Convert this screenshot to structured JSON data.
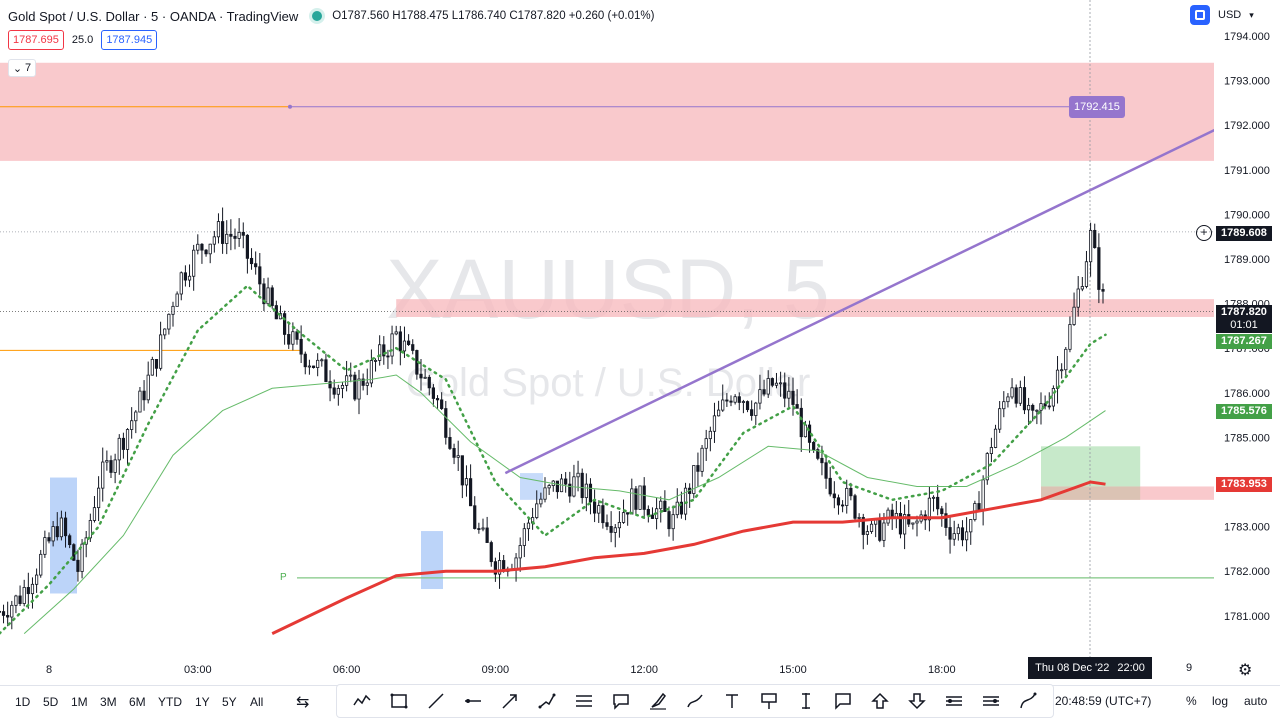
{
  "header": {
    "title": "Gold Spot / U.S. Dollar · 5 · OANDA · TradingView",
    "ohlc": "O1787.560 H1788.475 L1786.740 C1787.820 +0.260 (+0.01%)",
    "sell_price": "1787.695",
    "spread": "25.0",
    "buy_price": "1787.945",
    "indicator_count": "7",
    "currency": "USD"
  },
  "watermark": {
    "symbol": "XAUUSD, 5",
    "description": "Gold Spot / U.S. Dollar"
  },
  "colors": {
    "up": "#131722",
    "down": "#131722",
    "accent_blue": "#2962ff",
    "ma_red": "#e53935",
    "ma_green": "#66bb6a",
    "trendline": "#9575cd",
    "zone_red": "#f8bbbf"
  },
  "price_tags": {
    "trendline_end": "1792.415",
    "crosshair": "1789.608",
    "last_price": "1787.820",
    "countdown": "01:01",
    "ma_fast": "1787.267",
    "ma_green": "1785.576",
    "ma_red": "1783.953"
  },
  "pivot_label": "P",
  "time_cursor": {
    "date": "Thu 08 Dec '22",
    "time": "22:00"
  },
  "time_extra": "9",
  "bottom_bar": {
    "timeframes": [
      "1D",
      "5D",
      "1M",
      "3M",
      "6M",
      "YTD",
      "1Y",
      "5Y",
      "All"
    ],
    "clock": "20:48:59 (UTC+7)",
    "percent": "%",
    "log": "log",
    "auto": "auto"
  },
  "tools": [
    "zigzag-tool-icon",
    "rectangle-tool-icon",
    "trend-line-tool-icon",
    "horizontal-ray-tool-icon",
    "arrow-line-tool-icon",
    "path-tool-icon",
    "parallel-channel-tool-icon",
    "callout-tool-icon",
    "brush-tool-icon",
    "highlighter-tool-icon",
    "text-tool-icon",
    "price-note-tool-icon",
    "date-range-tool-icon",
    "comment-tool-icon",
    "arrow-up-tool-icon",
    "arrow-down-tool-icon",
    "long-position-tool-icon",
    "short-position-tool-icon",
    "curve-tool-icon"
  ],
  "chart_data": {
    "type": "candlestick",
    "symbol": "XAUUSD",
    "interval": "5",
    "ylim": [
      1780.6,
      1794.4
    ],
    "y_ticks": [
      1781,
      1782,
      1783,
      1784,
      1785,
      1786,
      1787,
      1788,
      1789,
      1790,
      1791,
      1792,
      1793,
      1794
    ],
    "y_tick_labels": [
      "1781.000",
      "1782.000",
      "1783.000",
      "1784.000",
      "1785.000",
      "1786.000",
      "1787.000",
      "1788.000",
      "1789.000",
      "1790.000",
      "1791.000",
      "1792.000",
      "1793.000",
      "1794.000"
    ],
    "x_ticks": [
      "8",
      "03:00",
      "06:00",
      "09:00",
      "12:00",
      "15:00",
      "18:00"
    ],
    "x_tick_hours": [
      0,
      3,
      6,
      9,
      12,
      15,
      18
    ],
    "xlim_hours": [
      -1,
      23.5
    ],
    "closes": [
      [
        -1.0,
        1781.1
      ],
      [
        -0.6,
        1781.4
      ],
      [
        -0.2,
        1782.2
      ],
      [
        0.2,
        1783.1
      ],
      [
        0.6,
        1782.0
      ],
      [
        1.0,
        1784.0
      ],
      [
        1.4,
        1784.8
      ],
      [
        1.8,
        1785.7
      ],
      [
        2.2,
        1786.9
      ],
      [
        2.6,
        1788.5
      ],
      [
        3.0,
        1789.2
      ],
      [
        3.4,
        1789.6
      ],
      [
        3.8,
        1789.5
      ],
      [
        4.2,
        1788.6
      ],
      [
        4.6,
        1787.6
      ],
      [
        5.0,
        1787.0
      ],
      [
        5.4,
        1786.6
      ],
      [
        5.8,
        1786.2
      ],
      [
        6.2,
        1786.1
      ],
      [
        6.6,
        1786.7
      ],
      [
        7.0,
        1787.3
      ],
      [
        7.4,
        1786.6
      ],
      [
        7.8,
        1785.9
      ],
      [
        8.2,
        1784.7
      ],
      [
        8.6,
        1783.0
      ],
      [
        9.0,
        1782.2
      ],
      [
        9.4,
        1782.3
      ],
      [
        9.8,
        1783.5
      ],
      [
        10.2,
        1783.9
      ],
      [
        10.6,
        1784.0
      ],
      [
        11.0,
        1783.5
      ],
      [
        11.4,
        1783.1
      ],
      [
        11.8,
        1783.7
      ],
      [
        12.2,
        1783.4
      ],
      [
        12.6,
        1783.1
      ],
      [
        13.0,
        1784.1
      ],
      [
        13.4,
        1785.3
      ],
      [
        13.8,
        1786.1
      ],
      [
        14.2,
        1785.7
      ],
      [
        14.6,
        1786.2
      ],
      [
        15.0,
        1785.8
      ],
      [
        15.4,
        1784.5
      ],
      [
        15.8,
        1783.9
      ],
      [
        16.2,
        1783.5
      ],
      [
        16.6,
        1782.8
      ],
      [
        17.0,
        1783.2
      ],
      [
        17.4,
        1782.9
      ],
      [
        17.8,
        1783.6
      ],
      [
        18.2,
        1782.9
      ],
      [
        18.6,
        1782.9
      ],
      [
        19.0,
        1784.9
      ],
      [
        19.4,
        1786.3
      ],
      [
        19.8,
        1785.3
      ],
      [
        20.2,
        1786.0
      ],
      [
        20.6,
        1787.5
      ],
      [
        21.0,
        1789.5
      ],
      [
        21.3,
        1787.8
      ]
    ],
    "moving_average_fast": [
      [
        -1.0,
        1780.6
      ],
      [
        0.0,
        1781.7
      ],
      [
        1.0,
        1783.0
      ],
      [
        2.0,
        1785.3
      ],
      [
        3.0,
        1787.4
      ],
      [
        4.0,
        1788.4
      ],
      [
        5.0,
        1787.4
      ],
      [
        6.0,
        1786.5
      ],
      [
        7.0,
        1787.0
      ],
      [
        8.0,
        1786.3
      ],
      [
        9.0,
        1784.0
      ],
      [
        10.0,
        1782.8
      ],
      [
        11.0,
        1783.6
      ],
      [
        12.0,
        1783.2
      ],
      [
        13.0,
        1783.6
      ],
      [
        14.0,
        1785.1
      ],
      [
        15.0,
        1785.7
      ],
      [
        16.0,
        1784.0
      ],
      [
        17.0,
        1783.6
      ],
      [
        18.0,
        1783.8
      ],
      [
        19.0,
        1784.4
      ],
      [
        20.0,
        1785.6
      ],
      [
        21.0,
        1787.1
      ],
      [
        21.3,
        1787.3
      ]
    ],
    "moving_average_green": [
      [
        -0.5,
        1780.6
      ],
      [
        0.5,
        1781.6
      ],
      [
        1.5,
        1782.8
      ],
      [
        2.5,
        1784.6
      ],
      [
        3.5,
        1785.6
      ],
      [
        4.5,
        1786.1
      ],
      [
        5.5,
        1786.2
      ],
      [
        6.5,
        1786.3
      ],
      [
        7.0,
        1786.4
      ],
      [
        7.5,
        1786.0
      ],
      [
        8.5,
        1784.9
      ],
      [
        9.5,
        1784.1
      ],
      [
        10.5,
        1783.9
      ],
      [
        11.5,
        1783.8
      ],
      [
        12.5,
        1783.6
      ],
      [
        13.5,
        1784.1
      ],
      [
        14.5,
        1784.8
      ],
      [
        15.5,
        1784.7
      ],
      [
        16.5,
        1784.1
      ],
      [
        17.5,
        1783.9
      ],
      [
        18.5,
        1783.9
      ],
      [
        19.5,
        1784.4
      ],
      [
        20.5,
        1785.0
      ],
      [
        21.3,
        1785.6
      ]
    ],
    "moving_average_red": [
      [
        4.5,
        1780.6
      ],
      [
        6.0,
        1781.4
      ],
      [
        7.0,
        1781.9
      ],
      [
        8.0,
        1782.0
      ],
      [
        9.0,
        1782.0
      ],
      [
        10.0,
        1782.1
      ],
      [
        11.0,
        1782.3
      ],
      [
        12.0,
        1782.4
      ],
      [
        13.0,
        1782.6
      ],
      [
        14.0,
        1782.9
      ],
      [
        15.0,
        1783.1
      ],
      [
        16.0,
        1783.1
      ],
      [
        17.0,
        1783.2
      ],
      [
        18.0,
        1783.2
      ],
      [
        19.0,
        1783.4
      ],
      [
        20.0,
        1783.6
      ],
      [
        21.0,
        1784.0
      ],
      [
        21.3,
        1783.95
      ]
    ],
    "trendline": [
      [
        9.2,
        1784.2
      ],
      [
        23.7,
        1792.0
      ]
    ],
    "horizontal_ray": 1792.415,
    "zones": [
      {
        "from_hour": -1,
        "to_hour": 24.6,
        "low": 1791.2,
        "high": 1793.4
      },
      {
        "from_hour": 7.0,
        "to_hour": 25.4,
        "low": 1787.7,
        "high": 1788.1
      },
      {
        "from_hour": 20.0,
        "to_hour": 25.4,
        "low": 1783.6,
        "high": 1783.9
      }
    ],
    "long_position": {
      "from_hour": 20.0,
      "to_hour": 22.0,
      "entry": 1783.9,
      "target": 1784.8
    },
    "pivot": 1781.85,
    "support_line": 1786.95,
    "last_price": 1787.82
  }
}
